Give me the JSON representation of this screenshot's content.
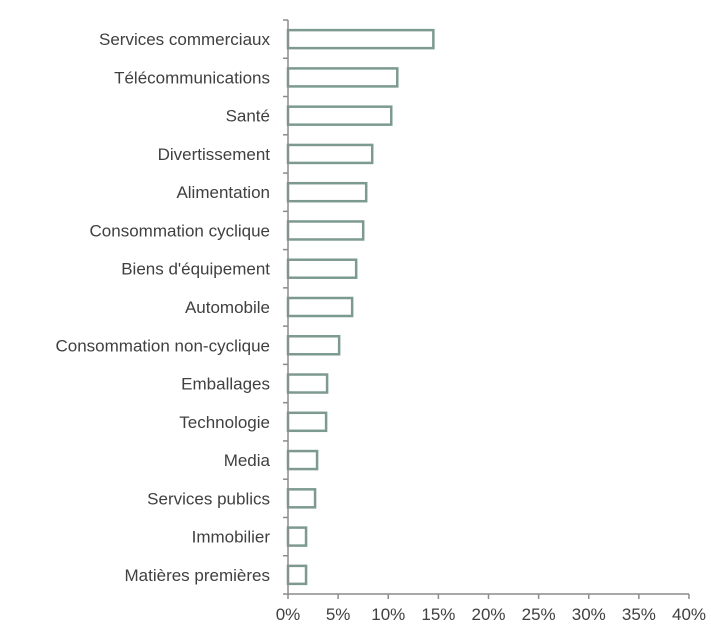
{
  "chart_data": {
    "type": "bar",
    "orientation": "horizontal",
    "title": "",
    "xlabel": "",
    "ylabel": "",
    "categories": [
      "Services commerciaux",
      "Télécommunications",
      "Santé",
      "Divertissement",
      "Alimentation",
      "Consommation cyclique",
      "Biens d'équipement",
      "Automobile",
      "Consommation non-cyclique",
      "Emballages",
      "Technologie",
      "Media",
      "Services publics",
      "Immobilier",
      "Matières premières"
    ],
    "values": [
      14.5,
      10.9,
      10.3,
      8.4,
      7.8,
      7.5,
      6.8,
      6.4,
      5.1,
      3.9,
      3.8,
      2.9,
      2.7,
      1.8,
      1.8
    ],
    "xlim": [
      0,
      40
    ],
    "xticks": [
      0,
      5,
      10,
      15,
      20,
      25,
      30,
      35,
      40
    ],
    "xtick_labels": [
      "0%",
      "5%",
      "10%",
      "15%",
      "20%",
      "25%",
      "30%",
      "35%",
      "40%"
    ],
    "grid": false,
    "legend": "none",
    "colors": {
      "bar_fill": "#ffffff",
      "bar_stroke": "#7d9a91",
      "axis": "#8c8c8c",
      "text": "#404040"
    }
  }
}
